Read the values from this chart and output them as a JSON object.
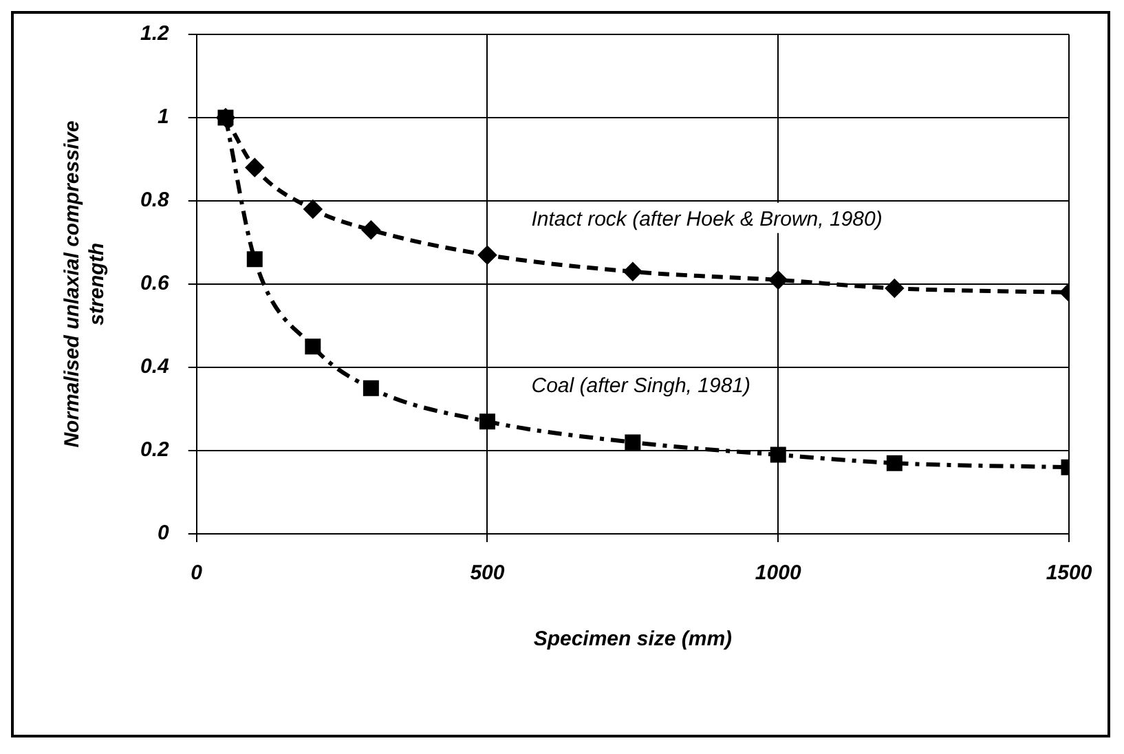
{
  "chart_data": {
    "type": "line",
    "xlabel": "Specimen size (mm)",
    "ylabel": "Normalised unlaxial compressive strength",
    "x": [
      50,
      100,
      200,
      300,
      500,
      750,
      1000,
      1200,
      1500
    ],
    "series": [
      {
        "name": "Intact rock (after Hoek & Brown, 1980)",
        "color": "#000000",
        "marker": "diamond",
        "line_style": "dashed",
        "values": [
          1.0,
          0.88,
          0.78,
          0.73,
          0.67,
          0.63,
          0.61,
          0.59,
          0.58
        ]
      },
      {
        "name": "Coal (after Singh, 1981)",
        "color": "#000000",
        "marker": "square",
        "line_style": "dashdot",
        "values": [
          1.0,
          0.66,
          0.45,
          0.35,
          0.27,
          0.22,
          0.19,
          0.17,
          0.16
        ]
      }
    ],
    "xlim": [
      0,
      1500
    ],
    "xticks": [
      0,
      500,
      1000,
      1500
    ],
    "ylim": [
      0,
      1.2
    ],
    "yticks": [
      0,
      0.2,
      0.4,
      0.6,
      0.8,
      1,
      1.2
    ],
    "grid": true,
    "legend": false
  }
}
